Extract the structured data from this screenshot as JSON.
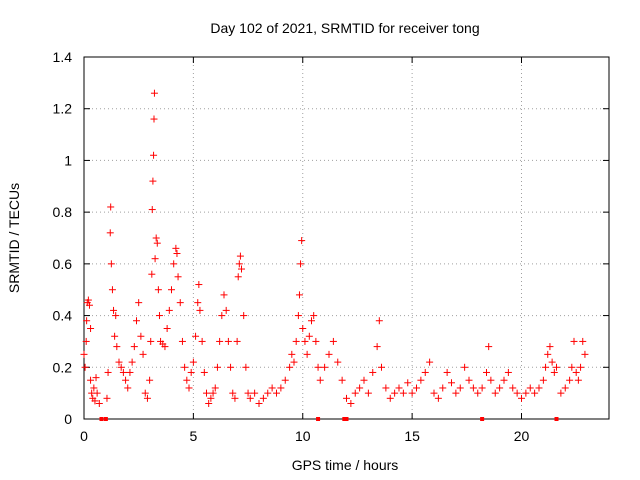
{
  "chart_data": {
    "type": "scatter",
    "title": "Day 102 of 2021, SRMTID for receiver tong",
    "xlabel": "GPS time / hours",
    "ylabel": "SRMTID / TECUs",
    "xlim": [
      0,
      24
    ],
    "ylim": [
      0,
      1.4
    ],
    "x_ticks": [
      0,
      5,
      10,
      15,
      20
    ],
    "x_tick_labels": [
      "0",
      "5",
      "10",
      "15",
      "20"
    ],
    "y_ticks": [
      0,
      0.2,
      0.4,
      0.6,
      0.8,
      1.0,
      1.2,
      1.4
    ],
    "y_tick_labels": [
      "0",
      "0.2",
      "0.4",
      "0.6",
      "0.8",
      "1",
      "1.2",
      "1.4"
    ],
    "grid": true,
    "marker": "+",
    "color": "#ff0000",
    "series": [
      {
        "name": "SRMTID",
        "points": [
          [
            0.0,
            0.25
          ],
          [
            0.05,
            0.2
          ],
          [
            0.1,
            0.3
          ],
          [
            0.12,
            0.38
          ],
          [
            0.15,
            0.45
          ],
          [
            0.2,
            0.46
          ],
          [
            0.25,
            0.44
          ],
          [
            0.3,
            0.35
          ],
          [
            0.3,
            0.15
          ],
          [
            0.35,
            0.1
          ],
          [
            0.4,
            0.08
          ],
          [
            0.45,
            0.12
          ],
          [
            0.5,
            0.07
          ],
          [
            0.55,
            0.16
          ],
          [
            0.6,
            0.1
          ],
          [
            0.7,
            0.06
          ],
          [
            1.05,
            0.08
          ],
          [
            1.1,
            0.18
          ],
          [
            1.2,
            0.72
          ],
          [
            1.22,
            0.82
          ],
          [
            1.25,
            0.6
          ],
          [
            1.3,
            0.5
          ],
          [
            1.35,
            0.42
          ],
          [
            1.4,
            0.32
          ],
          [
            1.45,
            0.4
          ],
          [
            1.5,
            0.28
          ],
          [
            1.6,
            0.22
          ],
          [
            1.7,
            0.2
          ],
          [
            1.8,
            0.18
          ],
          [
            1.9,
            0.15
          ],
          [
            2.0,
            0.12
          ],
          [
            2.1,
            0.18
          ],
          [
            2.2,
            0.22
          ],
          [
            2.3,
            0.28
          ],
          [
            2.4,
            0.38
          ],
          [
            2.5,
            0.45
          ],
          [
            2.6,
            0.32
          ],
          [
            2.7,
            0.25
          ],
          [
            2.8,
            0.1
          ],
          [
            2.9,
            0.08
          ],
          [
            3.0,
            0.15
          ],
          [
            3.05,
            0.3
          ],
          [
            3.1,
            0.56
          ],
          [
            3.12,
            0.81
          ],
          [
            3.15,
            0.92
          ],
          [
            3.18,
            1.02
          ],
          [
            3.2,
            1.16
          ],
          [
            3.22,
            1.26
          ],
          [
            3.25,
            0.62
          ],
          [
            3.3,
            0.7
          ],
          [
            3.35,
            0.68
          ],
          [
            3.4,
            0.5
          ],
          [
            3.45,
            0.4
          ],
          [
            3.5,
            0.3
          ],
          [
            3.6,
            0.29
          ],
          [
            3.7,
            0.28
          ],
          [
            3.8,
            0.35
          ],
          [
            3.9,
            0.42
          ],
          [
            4.0,
            0.5
          ],
          [
            4.1,
            0.6
          ],
          [
            4.2,
            0.66
          ],
          [
            4.25,
            0.64
          ],
          [
            4.3,
            0.55
          ],
          [
            4.4,
            0.45
          ],
          [
            4.5,
            0.3
          ],
          [
            4.6,
            0.2
          ],
          [
            4.7,
            0.15
          ],
          [
            4.8,
            0.12
          ],
          [
            4.9,
            0.18
          ],
          [
            5.0,
            0.22
          ],
          [
            5.1,
            0.32
          ],
          [
            5.2,
            0.45
          ],
          [
            5.25,
            0.52
          ],
          [
            5.3,
            0.42
          ],
          [
            5.4,
            0.3
          ],
          [
            5.5,
            0.18
          ],
          [
            5.6,
            0.1
          ],
          [
            5.7,
            0.06
          ],
          [
            5.8,
            0.08
          ],
          [
            5.9,
            0.1
          ],
          [
            6.0,
            0.12
          ],
          [
            6.1,
            0.2
          ],
          [
            6.2,
            0.3
          ],
          [
            6.3,
            0.4
          ],
          [
            6.4,
            0.48
          ],
          [
            6.5,
            0.42
          ],
          [
            6.6,
            0.3
          ],
          [
            6.7,
            0.2
          ],
          [
            6.8,
            0.1
          ],
          [
            6.9,
            0.08
          ],
          [
            7.0,
            0.3
          ],
          [
            7.05,
            0.55
          ],
          [
            7.1,
            0.6
          ],
          [
            7.15,
            0.63
          ],
          [
            7.2,
            0.58
          ],
          [
            7.3,
            0.4
          ],
          [
            7.4,
            0.2
          ],
          [
            7.5,
            0.1
          ],
          [
            7.6,
            0.08
          ],
          [
            7.8,
            0.1
          ],
          [
            8.0,
            0.06
          ],
          [
            8.2,
            0.08
          ],
          [
            8.4,
            0.1
          ],
          [
            8.6,
            0.12
          ],
          [
            8.8,
            0.1
          ],
          [
            9.0,
            0.12
          ],
          [
            9.2,
            0.15
          ],
          [
            9.4,
            0.2
          ],
          [
            9.5,
            0.25
          ],
          [
            9.6,
            0.22
          ],
          [
            9.7,
            0.3
          ],
          [
            9.8,
            0.4
          ],
          [
            9.85,
            0.48
          ],
          [
            9.9,
            0.6
          ],
          [
            9.95,
            0.69
          ],
          [
            10.0,
            0.35
          ],
          [
            10.1,
            0.3
          ],
          [
            10.2,
            0.25
          ],
          [
            10.3,
            0.32
          ],
          [
            10.4,
            0.38
          ],
          [
            10.5,
            0.4
          ],
          [
            10.6,
            0.3
          ],
          [
            10.7,
            0.2
          ],
          [
            10.8,
            0.15
          ],
          [
            11.0,
            0.2
          ],
          [
            11.2,
            0.25
          ],
          [
            11.4,
            0.3
          ],
          [
            11.6,
            0.22
          ],
          [
            11.8,
            0.15
          ],
          [
            12.0,
            0.08
          ],
          [
            12.2,
            0.06
          ],
          [
            12.4,
            0.1
          ],
          [
            12.6,
            0.12
          ],
          [
            12.8,
            0.15
          ],
          [
            13.0,
            0.1
          ],
          [
            13.2,
            0.18
          ],
          [
            13.4,
            0.28
          ],
          [
            13.5,
            0.38
          ],
          [
            13.6,
            0.2
          ],
          [
            13.8,
            0.12
          ],
          [
            14.0,
            0.08
          ],
          [
            14.2,
            0.1
          ],
          [
            14.4,
            0.12
          ],
          [
            14.6,
            0.1
          ],
          [
            14.8,
            0.14
          ],
          [
            15.0,
            0.1
          ],
          [
            15.2,
            0.12
          ],
          [
            15.4,
            0.15
          ],
          [
            15.6,
            0.18
          ],
          [
            15.8,
            0.22
          ],
          [
            16.0,
            0.1
          ],
          [
            16.2,
            0.08
          ],
          [
            16.4,
            0.12
          ],
          [
            16.6,
            0.18
          ],
          [
            16.8,
            0.14
          ],
          [
            17.0,
            0.1
          ],
          [
            17.2,
            0.12
          ],
          [
            17.4,
            0.2
          ],
          [
            17.6,
            0.15
          ],
          [
            17.8,
            0.12
          ],
          [
            18.0,
            0.1
          ],
          [
            18.2,
            0.12
          ],
          [
            18.4,
            0.18
          ],
          [
            18.5,
            0.28
          ],
          [
            18.6,
            0.15
          ],
          [
            18.8,
            0.1
          ],
          [
            19.0,
            0.12
          ],
          [
            19.2,
            0.15
          ],
          [
            19.4,
            0.18
          ],
          [
            19.6,
            0.12
          ],
          [
            19.8,
            0.1
          ],
          [
            20.0,
            0.08
          ],
          [
            20.2,
            0.1
          ],
          [
            20.4,
            0.12
          ],
          [
            20.6,
            0.1
          ],
          [
            20.8,
            0.12
          ],
          [
            21.0,
            0.15
          ],
          [
            21.1,
            0.2
          ],
          [
            21.2,
            0.25
          ],
          [
            21.3,
            0.28
          ],
          [
            21.4,
            0.22
          ],
          [
            21.5,
            0.18
          ],
          [
            21.6,
            0.2
          ],
          [
            21.8,
            0.1
          ],
          [
            22.0,
            0.12
          ],
          [
            22.2,
            0.15
          ],
          [
            22.3,
            0.2
          ],
          [
            22.4,
            0.3
          ],
          [
            22.5,
            0.18
          ],
          [
            22.6,
            0.15
          ],
          [
            22.7,
            0.2
          ],
          [
            22.8,
            0.3
          ],
          [
            22.9,
            0.25
          ]
        ]
      }
    ],
    "baseline_points": [
      0.8,
      1.0,
      10.7,
      11.9,
      12.0,
      18.2,
      21.6
    ]
  }
}
